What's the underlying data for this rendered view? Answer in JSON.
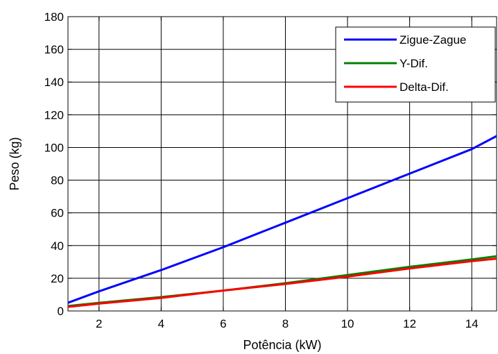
{
  "chart_data": {
    "type": "line",
    "title": "",
    "xlabel": "Potência (kW)",
    "ylabel": "Peso (kg)",
    "xlim": [
      1,
      14.8
    ],
    "ylim": [
      0,
      180
    ],
    "xticks": [
      2,
      4,
      6,
      8,
      10,
      12,
      14
    ],
    "yticks": [
      0,
      20,
      40,
      60,
      80,
      100,
      120,
      140,
      160,
      180
    ],
    "grid": true,
    "legend_position": "top-right",
    "series": [
      {
        "name": "Zigue-Zague",
        "color": "#0000ff",
        "x": [
          1,
          2,
          4,
          6,
          8,
          10,
          12,
          14,
          14.8
        ],
        "y": [
          5,
          12,
          25,
          39,
          54,
          69,
          84,
          99,
          107
        ]
      },
      {
        "name": "Y-Dif.",
        "color": "#008000",
        "x": [
          1,
          2,
          4,
          6,
          8,
          10,
          12,
          14,
          14.8
        ],
        "y": [
          3,
          5,
          8.5,
          12.5,
          17,
          22,
          27,
          31.5,
          33.5
        ]
      },
      {
        "name": "Delta-Dif.",
        "color": "#ff0000",
        "x": [
          1,
          2,
          4,
          6,
          8,
          10,
          12,
          14,
          14.8
        ],
        "y": [
          2.5,
          4.5,
          8,
          12.5,
          16.5,
          21,
          26,
          30.5,
          32
        ]
      }
    ]
  }
}
